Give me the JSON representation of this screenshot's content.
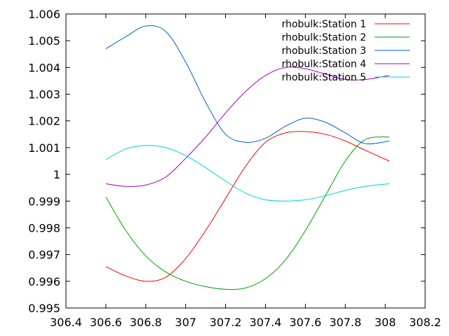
{
  "chart_data": {
    "type": "line",
    "title": "",
    "xlabel": "",
    "ylabel": "",
    "xlim": [
      306.4,
      308.2
    ],
    "ylim": [
      0.995,
      1.006
    ],
    "xticks": [
      306.4,
      306.6,
      306.8,
      307,
      307.2,
      307.4,
      307.6,
      307.8,
      308,
      308.2
    ],
    "xtick_labels": [
      "306.4",
      "306.6",
      "306.8",
      "307",
      "307.2",
      "307.4",
      "307.6",
      "307.8",
      "308",
      "308.2"
    ],
    "yticks": [
      0.995,
      0.996,
      0.997,
      0.998,
      0.999,
      1,
      1.001,
      1.002,
      1.003,
      1.004,
      1.005,
      1.006
    ],
    "ytick_labels": [
      "0.995",
      "0.996",
      "0.997",
      "0.998",
      "0.999",
      "1",
      "1.001",
      "1.002",
      "1.003",
      "1.004",
      "1.005",
      "1.006"
    ],
    "grid": false,
    "legend_position": "top-right",
    "series": [
      {
        "name": "rhobulk:Station 1",
        "color": "#ff0000",
        "x": [
          306.6,
          306.7,
          306.8,
          306.9,
          307.0,
          307.1,
          307.2,
          307.3,
          307.4,
          307.5,
          307.6,
          307.7,
          307.8,
          307.9,
          308.02
        ],
        "y": [
          0.99655,
          0.9962,
          0.996,
          0.99615,
          0.99685,
          0.9979,
          0.9991,
          1.0003,
          1.0012,
          1.00155,
          1.0016,
          1.0015,
          1.00125,
          1.0009,
          1.0005
        ]
      },
      {
        "name": "rhobulk:Station 2",
        "color": "#00a000",
        "x": [
          306.6,
          306.7,
          306.8,
          306.9,
          307.0,
          307.1,
          307.2,
          307.3,
          307.4,
          307.5,
          307.6,
          307.7,
          307.8,
          307.9,
          308.02
        ],
        "y": [
          0.99915,
          0.9979,
          0.99695,
          0.99635,
          0.996,
          0.9958,
          0.9957,
          0.99575,
          0.9961,
          0.9968,
          0.9979,
          0.9992,
          1.0005,
          1.0013,
          1.0014
        ]
      },
      {
        "name": "rhobulk:Station 3",
        "color": "#0060c8",
        "x": [
          306.6,
          306.7,
          306.8,
          306.9,
          307.0,
          307.1,
          307.2,
          307.3,
          307.4,
          307.5,
          307.6,
          307.7,
          307.8,
          307.9,
          308.02
        ],
        "y": [
          1.0047,
          1.00515,
          1.00555,
          1.00535,
          1.0042,
          1.0027,
          1.0015,
          1.0012,
          1.00135,
          1.0018,
          1.0021,
          1.00195,
          1.00155,
          1.00115,
          1.00125
        ]
      },
      {
        "name": "rhobulk:Station 4",
        "color": "#a000d0",
        "x": [
          306.6,
          306.7,
          306.8,
          306.9,
          307.0,
          307.1,
          307.2,
          307.3,
          307.4,
          307.5,
          307.6,
          307.7,
          307.8,
          307.9,
          308.02
        ],
        "y": [
          0.99965,
          0.99955,
          0.9996,
          0.9999,
          1.0006,
          1.0014,
          1.0023,
          1.0031,
          1.0037,
          1.004,
          1.00395,
          1.00375,
          1.00355,
          1.00355,
          1.0037
        ]
      },
      {
        "name": "rhobulk:Station 5",
        "color": "#00d0d0",
        "x": [
          306.6,
          306.7,
          306.8,
          306.9,
          307.0,
          307.1,
          307.2,
          307.3,
          307.4,
          307.5,
          307.6,
          307.7,
          307.8,
          307.9,
          308.02
        ],
        "y": [
          1.00055,
          1.00095,
          1.00108,
          1.001,
          1.0007,
          1.00025,
          0.99975,
          0.9993,
          0.99905,
          0.999,
          0.99905,
          0.9992,
          0.9994,
          0.99955,
          0.99965
        ]
      }
    ]
  }
}
